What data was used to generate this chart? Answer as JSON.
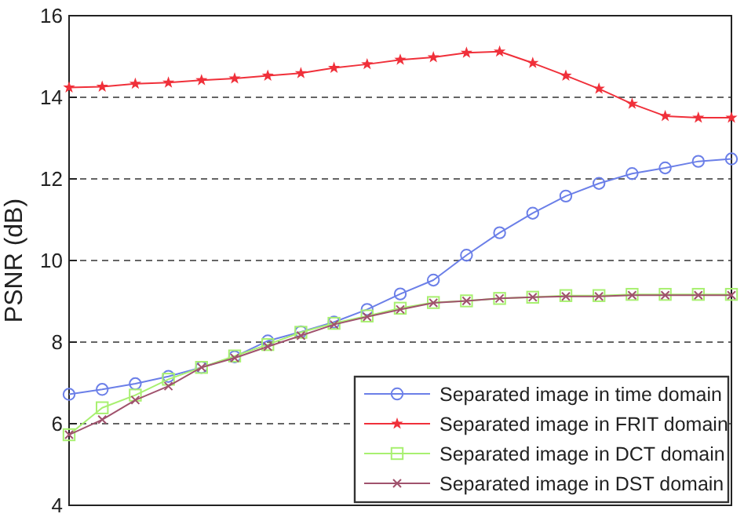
{
  "chart_data": {
    "type": "line",
    "ylabel": "PSNR (dB)",
    "categories": [
      null,
      null,
      null,
      null,
      null,
      null,
      null,
      null,
      null,
      null,
      null,
      null,
      null,
      null,
      null,
      null,
      null,
      null,
      null,
      null,
      null
    ],
    "ylim": [
      4,
      16
    ],
    "yticks": [
      4,
      6,
      8,
      10,
      12,
      14,
      16
    ],
    "grid": "y",
    "legend": "bottom right",
    "line_style": "solid",
    "series": [
      {
        "name": "Separated image in time domain",
        "color": "#6b7fe8",
        "marker": "circle",
        "values": [
          6.72,
          6.84,
          6.98,
          7.16,
          7.38,
          7.64,
          8.03,
          8.25,
          8.49,
          8.8,
          9.18,
          9.52,
          10.13,
          10.68,
          11.16,
          11.58,
          11.89,
          12.13,
          12.27,
          12.43,
          12.49
        ]
      },
      {
        "name": "Separated image in FRIT domain",
        "color": "#f0303a",
        "marker": "star",
        "values": [
          14.24,
          14.26,
          14.33,
          14.36,
          14.42,
          14.46,
          14.53,
          14.59,
          14.72,
          14.81,
          14.92,
          14.98,
          15.09,
          15.12,
          14.84,
          14.53,
          14.21,
          13.84,
          13.54,
          13.5,
          13.5
        ]
      },
      {
        "name": "Separated image in DCT domain",
        "color": "#a8f070",
        "marker": "square",
        "values": [
          5.73,
          6.39,
          6.7,
          7.09,
          7.38,
          7.66,
          7.94,
          8.24,
          8.46,
          8.64,
          8.83,
          8.97,
          9.01,
          9.07,
          9.1,
          9.14,
          9.14,
          9.17,
          9.17,
          9.17,
          9.17
        ]
      },
      {
        "name": "Separated image in DST domain",
        "color": "#a0526d",
        "marker": "cross",
        "values": [
          5.73,
          6.1,
          6.58,
          6.92,
          7.38,
          7.61,
          7.89,
          8.16,
          8.43,
          8.62,
          8.8,
          8.96,
          9.01,
          9.07,
          9.1,
          9.12,
          9.12,
          9.15,
          9.15,
          9.15,
          9.15
        ]
      }
    ]
  }
}
